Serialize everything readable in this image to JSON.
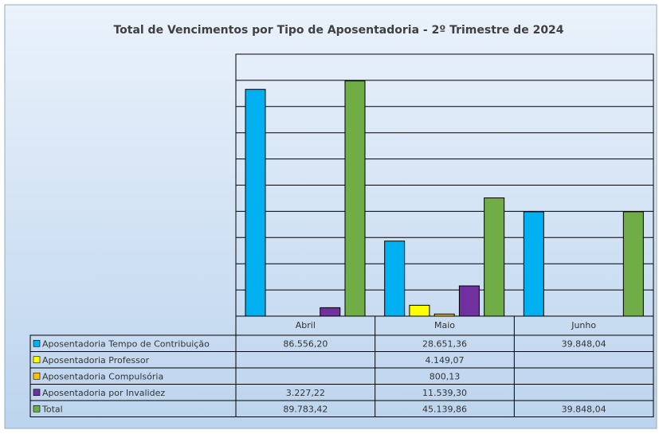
{
  "chart_data": {
    "type": "bar",
    "title": "Total de Vencimentos por Tipo de Aposentadoria - 2º Trimestre de 2024",
    "categories": [
      "Abril",
      "Maio",
      "Junho"
    ],
    "series": [
      {
        "name": "Aposentadoria Tempo de Contribuição",
        "color": "#00b0f0",
        "values": [
          86556.2,
          28651.36,
          39848.04
        ],
        "value_labels": [
          "86.556,20",
          "28.651,36",
          "39.848,04"
        ]
      },
      {
        "name": "Aposentadoria Professor",
        "color": "#ffff00",
        "values": [
          null,
          4149.07,
          null
        ],
        "value_labels": [
          null,
          "4.149,07",
          null
        ]
      },
      {
        "name": "Aposentadoria Compulsória",
        "color": "#ffc000",
        "values": [
          null,
          800.13,
          null
        ],
        "value_labels": [
          null,
          "800,13",
          null
        ]
      },
      {
        "name": "Aposentadoria por Invalidez",
        "color": "#7030a0",
        "values": [
          3227.22,
          11539.3,
          null
        ],
        "value_labels": [
          "3.227,22",
          "11.539,30",
          null
        ]
      },
      {
        "name": "Total",
        "color": "#70ad47",
        "values": [
          89783.42,
          45139.86,
          39848.04
        ],
        "value_labels": [
          "89.783,42",
          "45.139,86",
          "39.848,04"
        ]
      }
    ],
    "ylim": [
      0,
      100000
    ],
    "yticks": [
      0,
      10000,
      20000,
      30000,
      40000,
      50000,
      60000,
      70000,
      80000,
      90000,
      100000
    ],
    "grid": true
  }
}
